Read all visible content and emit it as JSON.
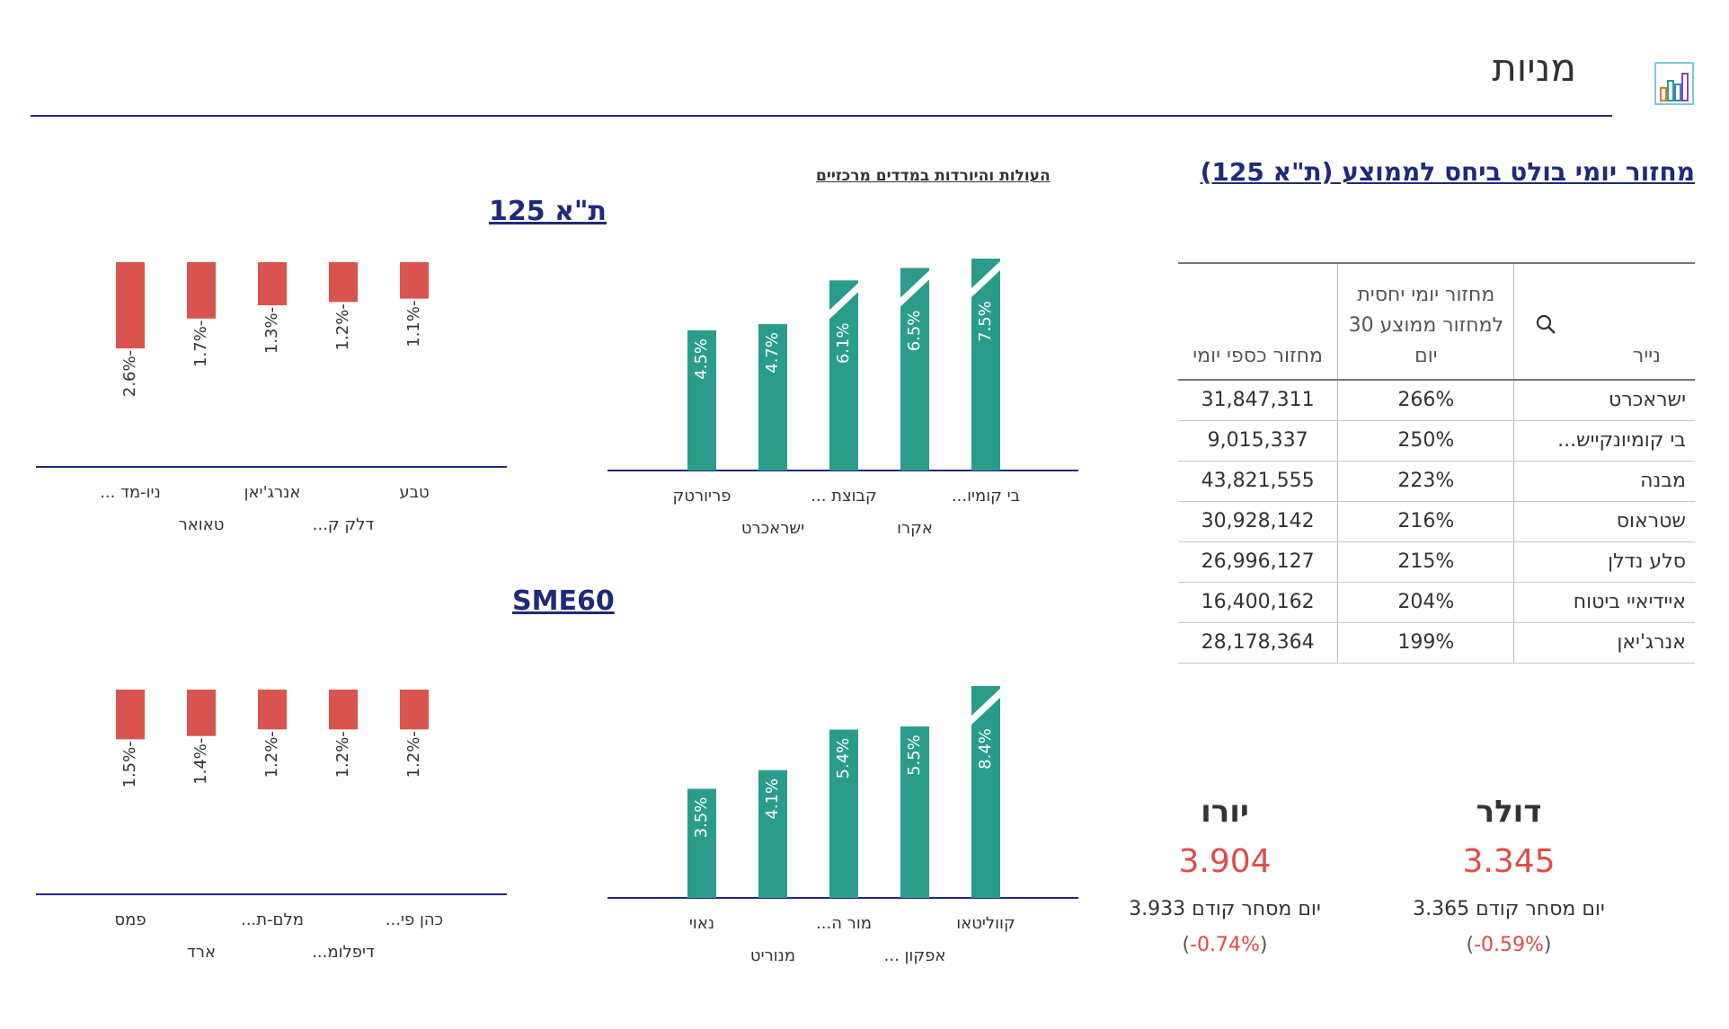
{
  "header": {
    "title": "מניות",
    "icon": "bar-chart-icon"
  },
  "turnover": {
    "title": "מחזור יומי בולט ביחס לממוצע (ת\"א 125)",
    "columns": {
      "name": "נייר",
      "relative": "מחזור יומי יחסית למחזור ממוצע 30 יום",
      "cash": "מחזור כספי יומי"
    },
    "rows": [
      {
        "name": "ישראכרט",
        "relative": "266%",
        "cash": "31,847,311"
      },
      {
        "name": "בי קומיונקייש...",
        "relative": "250%",
        "cash": "9,015,337"
      },
      {
        "name": "מבנה",
        "relative": "223%",
        "cash": "43,821,555"
      },
      {
        "name": "שטראוס",
        "relative": "216%",
        "cash": "30,928,142"
      },
      {
        "name": "סלע נדלן",
        "relative": "215%",
        "cash": "26,996,127"
      },
      {
        "name": "איידיאיי ביטוח",
        "relative": "204%",
        "cash": "16,400,162"
      },
      {
        "name": "אנרג'יאן",
        "relative": "199%",
        "cash": "28,178,364"
      }
    ]
  },
  "currencies": {
    "usd": {
      "name": "דולר",
      "value": "3.345",
      "prev_label": "יום מסחר קודם",
      "prev_value": "3.365",
      "change": "0.59%-"
    },
    "eur": {
      "name": "יורו",
      "value": "3.904",
      "prev_label": "יום מסחר קודם",
      "prev_value": "3.933",
      "change": "0.74%-"
    }
  },
  "charts": {
    "subtitle": "העולות והיורדות במדדים מרכזיים",
    "colors": {
      "up": "#2a9d8a",
      "down": "#d9534f",
      "axis": "#1f2a7a"
    }
  },
  "chart_data": [
    {
      "index": "ת\"א 125",
      "type": "bar",
      "direction": "up",
      "categories": [
        "בי קומיו...",
        "אקרו",
        "קבוצת ...",
        "ישראכרט",
        "פריורטק"
      ],
      "values": [
        7.5,
        6.5,
        6.1,
        4.7,
        4.5
      ],
      "labels": [
        "7.5%",
        "6.5%",
        "6.1%",
        "4.7%",
        "4.5%"
      ],
      "clipped": [
        true,
        true,
        true,
        false,
        false
      ]
    },
    {
      "index": "ת\"א 125",
      "type": "bar",
      "direction": "down",
      "categories": [
        "טבע",
        "דלק ק...",
        "אנרג'יאן",
        "טאואר",
        "ניו-מד ..."
      ],
      "values": [
        -1.1,
        -1.2,
        -1.3,
        -1.7,
        -2.6
      ],
      "labels": [
        "-1.1%",
        "-1.2%",
        "-1.3%",
        "-1.7%",
        "-2.6%"
      ]
    },
    {
      "index": "SME60",
      "type": "bar",
      "direction": "up",
      "categories": [
        "קווליטאו",
        "אפקון ...",
        "מור ה...",
        "מנוריט",
        "נאוי"
      ],
      "values": [
        8.4,
        5.5,
        5.4,
        4.1,
        3.5
      ],
      "labels": [
        "8.4%",
        "5.5%",
        "5.4%",
        "4.1%",
        "3.5%"
      ],
      "clipped": [
        true,
        false,
        false,
        false,
        false
      ]
    },
    {
      "index": "SME60",
      "type": "bar",
      "direction": "down",
      "categories": [
        "כהן פי...",
        "דיפלומ...",
        "מלם-ת...",
        "ארד",
        "פמס"
      ],
      "values": [
        -1.2,
        -1.2,
        -1.2,
        -1.4,
        -1.5
      ],
      "labels": [
        "-1.2%",
        "-1.2%",
        "-1.2%",
        "-1.4%",
        "-1.5%"
      ]
    }
  ]
}
